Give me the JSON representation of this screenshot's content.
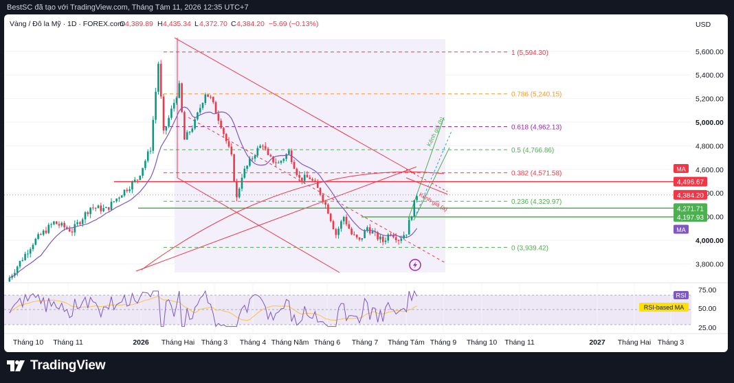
{
  "header": {
    "window_title": "BestSC đã tạo với TradingView.com, Tháng Tám 11, 2026 12:35 UTC+7"
  },
  "legend": {
    "symbol": "Vàng / Đô la Mỹ · 1D · FOREX.com",
    "open_label": "O",
    "open": "4,389.89",
    "high_label": "H",
    "high": "4,435.34",
    "low_label": "L",
    "low": "4,372.70",
    "close_label": "C",
    "close": "4,384.20",
    "change": "−5.69 (−0.13%)"
  },
  "currency": "USD",
  "colors": {
    "up": "#089981",
    "down": "#f23645",
    "ma": "#7e57c2",
    "rsi": "#7e57c2",
    "rsi_ma": "#f7c548",
    "fib_orange": "#f59a23",
    "fib_purple": "#9c27b0",
    "fib_green": "#4caf50",
    "fib_red": "#f23645"
  },
  "chart_data": {
    "type": "candlestick",
    "x_ticks": [
      "Tháng 10",
      "Tháng 11",
      "2026",
      "Tháng Hai",
      "Tháng 3",
      "Tháng 4",
      "Tháng Năm",
      "Tháng 6",
      "Tháng 7",
      "Tháng Tám",
      "Tháng 9",
      "Tháng 10",
      "Tháng 11",
      "2027",
      "Tháng Hai",
      "Tháng 3"
    ],
    "y_ticks": [
      "5,600.00",
      "5,400.00",
      "5,200.00",
      "5,000.00",
      "4,800.00",
      "4,600.00",
      "4,400.00",
      "4,200.00",
      "4,000.00",
      "3,800.00"
    ],
    "ylim": [
      3700,
      5680
    ],
    "price_path": [
      [
        0,
        3650
      ],
      [
        10,
        3980
      ],
      [
        18,
        4150
      ],
      [
        25,
        4080
      ],
      [
        32,
        4280
      ],
      [
        38,
        4260
      ],
      [
        44,
        4400
      ],
      [
        50,
        4520
      ],
      [
        55,
        4780
      ],
      [
        58,
        5500
      ],
      [
        60,
        4900
      ],
      [
        63,
        5100
      ],
      [
        66,
        5300
      ],
      [
        68,
        4850
      ],
      [
        72,
        5000
      ],
      [
        76,
        5250
      ],
      [
        78,
        5200
      ],
      [
        82,
        4980
      ],
      [
        86,
        4700
      ],
      [
        88,
        4350
      ],
      [
        90,
        4550
      ],
      [
        95,
        4740
      ],
      [
        98,
        4820
      ],
      [
        100,
        4700
      ],
      [
        104,
        4650
      ],
      [
        108,
        4750
      ],
      [
        112,
        4520
      ],
      [
        116,
        4530
      ],
      [
        120,
        4400
      ],
      [
        123,
        4250
      ],
      [
        126,
        4050
      ],
      [
        129,
        4200
      ],
      [
        132,
        4050
      ],
      [
        135,
        3990
      ],
      [
        138,
        4110
      ],
      [
        141,
        4040
      ],
      [
        144,
        3990
      ],
      [
        147,
        4070
      ],
      [
        150,
        4010
      ],
      [
        153,
        4070
      ],
      [
        155,
        4230
      ],
      [
        157,
        4390
      ]
    ],
    "fibonacci": [
      {
        "ratio": "1",
        "value": "5,594.30",
        "price": 5594.3,
        "color": "#f23645"
      },
      {
        "ratio": "0.786",
        "value": "5,240.15",
        "price": 5240.15,
        "color": "#f59a23"
      },
      {
        "ratio": "0.618",
        "value": "4,962.13",
        "price": 4962.13,
        "color": "#9c27b0"
      },
      {
        "ratio": "0.5",
        "value": "4,766.86",
        "price": 4766.86,
        "color": "#4caf50"
      },
      {
        "ratio": "0.382",
        "value": "4,571.58",
        "price": 4571.58,
        "color": "#f23645"
      },
      {
        "ratio": "0.236",
        "value": "4,329.97",
        "price": 4329.97,
        "color": "#4caf50"
      },
      {
        "ratio": "0",
        "value": "3,939.42",
        "price": 3939.42,
        "color": "#4caf50"
      }
    ],
    "horizontal_levels": [
      {
        "value": "4,496.67",
        "price": 4496.67,
        "color": "#f23645"
      },
      {
        "value": "4,271.71",
        "price": 4271.71,
        "color": "#4caf50"
      },
      {
        "value": "4,197.93",
        "price": 4197.93,
        "color": "#4caf50"
      }
    ],
    "price_labels": [
      {
        "value": "4,496.67",
        "price": 4496.67,
        "bg": "#f23645"
      },
      {
        "value": "4,384.20",
        "price": 4384.2,
        "bg": "#f23645"
      },
      {
        "value": "4,271.71",
        "price": 4271.71,
        "bg": "#4caf50"
      },
      {
        "value": "4,197.93",
        "price": 4197.93,
        "bg": "#4caf50"
      }
    ],
    "ma_tags": [
      {
        "text": "MA",
        "price": 4605,
        "bg": "#f23645"
      },
      {
        "text": "MA",
        "price": 4090,
        "bg": "#7e57c2"
      }
    ],
    "annotations": [
      "Kênh giá (b)",
      "Kênh giá (a)"
    ],
    "rsi": {
      "y_ticks": [
        "75.00",
        "50.00",
        "25.00"
      ],
      "ylim": [
        15,
        85
      ],
      "labels": [
        "RSI",
        "RSI-based MA"
      ]
    }
  }
}
